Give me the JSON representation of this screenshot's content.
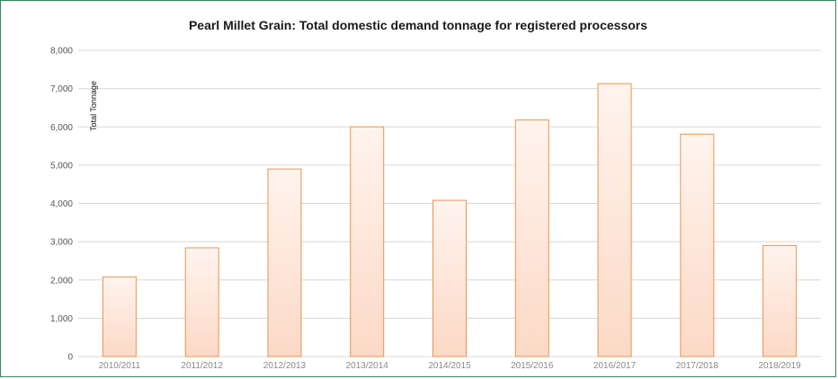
{
  "chart_data": {
    "type": "bar",
    "title": "Pearl Millet Grain: Total domestic demand tonnage for registered processors",
    "xlabel": "",
    "ylabel": "Total Tonnage",
    "categories": [
      "2010/2011",
      "2011/2012",
      "2012/2013",
      "2013/2014",
      "2014/2015",
      "2015/2016",
      "2016/2017",
      "2017/2018",
      "2018/2019"
    ],
    "values": [
      2080,
      2840,
      4900,
      6000,
      4080,
      6180,
      7130,
      5810,
      2900
    ],
    "ylim": [
      0,
      8000
    ],
    "yticks": [
      "0",
      "1,000",
      "2,000",
      "3,000",
      "4,000",
      "5,000",
      "6,000",
      "7,000",
      "8,000"
    ],
    "grid": true,
    "legend": "none",
    "colors": {
      "bar_fill_top": "#fff4ee",
      "bar_fill_bottom": "#fcd9c6",
      "bar_stroke": "#e8944f",
      "grid": "#d9d9d9",
      "frame": "#2e8b57"
    }
  }
}
